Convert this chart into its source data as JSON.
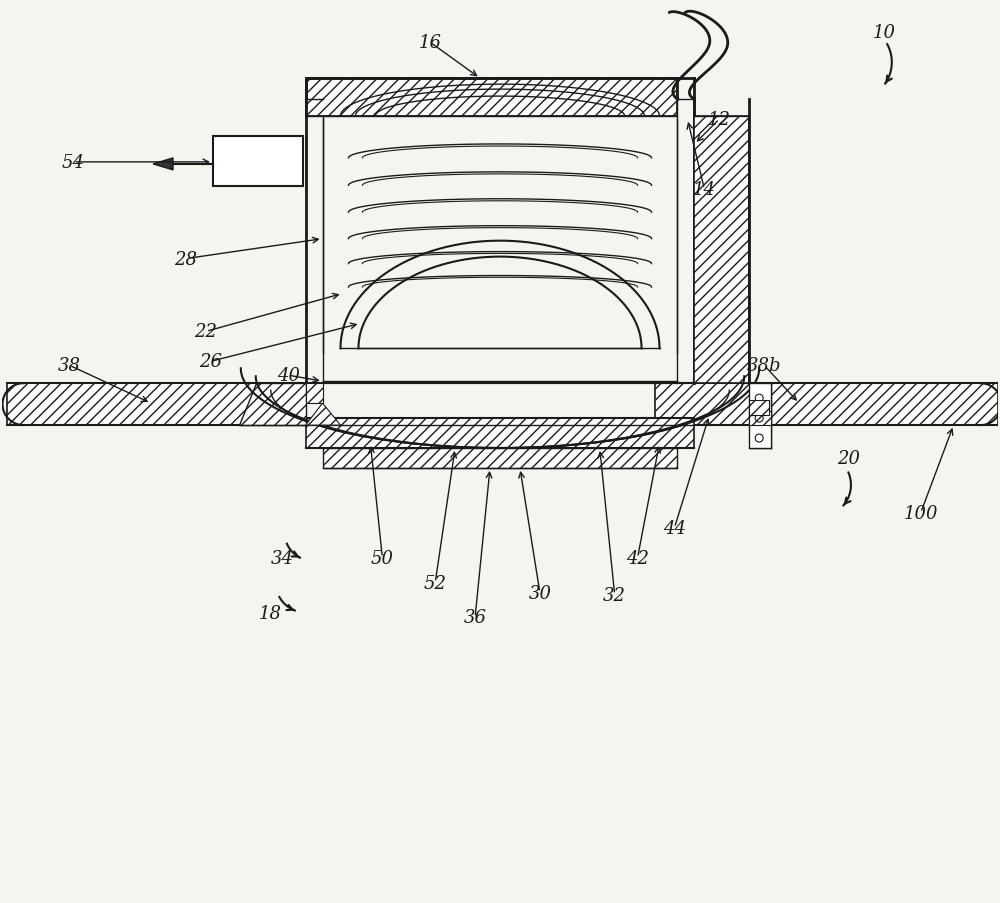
{
  "bg_color": "#f5f5f0",
  "line_color": "#1a1a1a",
  "figsize": [
    10.0,
    9.04
  ],
  "dpi": 100,
  "label_fontsize": 13,
  "label_fontstyle": "italic",
  "label_fontfamily": "DejaVu Serif"
}
